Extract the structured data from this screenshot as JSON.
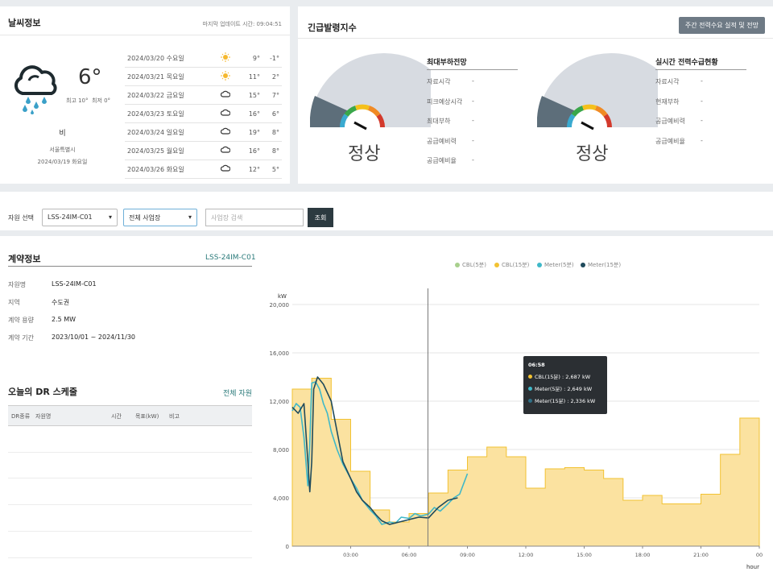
{
  "weather": {
    "title": "날씨정보",
    "updated": "마지막 업데이트 시간: 09:04:51",
    "icon": "rain-cloud-icon",
    "temp": "6°",
    "high": "최고 10°",
    "low": "최저 0°",
    "condition": "비",
    "location": "서울특별시",
    "date": "2024/03/19 화요일",
    "forecast": [
      {
        "date": "2024/03/20 수요일",
        "icon": "sun-icon",
        "high": "9°",
        "low": "-1°"
      },
      {
        "date": "2024/03/21 목요일",
        "icon": "sun-icon",
        "high": "11°",
        "low": "2°"
      },
      {
        "date": "2024/03/22 금요일",
        "icon": "cloud-icon",
        "high": "15°",
        "low": "7°"
      },
      {
        "date": "2024/03/23 토요일",
        "icon": "cloud-icon",
        "high": "16°",
        "low": "6°"
      },
      {
        "date": "2024/03/24 일요일",
        "icon": "cloud-icon",
        "high": "19°",
        "low": "8°"
      },
      {
        "date": "2024/03/25 월요일",
        "icon": "cloud-icon",
        "high": "16°",
        "low": "8°"
      },
      {
        "date": "2024/03/26 화요일",
        "icon": "cloud-icon",
        "high": "12°",
        "low": "5°"
      }
    ]
  },
  "emergency": {
    "title": "긴급발령지수",
    "button": "주간 전력수요 실적 및 전망",
    "gauges": [
      {
        "status": "정상",
        "info_title": "최대부하전망",
        "rows": [
          {
            "k": "자료시각",
            "v": "-"
          },
          {
            "k": "피크예상시각",
            "v": "-"
          },
          {
            "k": "최대부하",
            "v": "-"
          },
          {
            "k": "공급예비력",
            "v": "-"
          },
          {
            "k": "공급예비율",
            "v": "-"
          }
        ]
      },
      {
        "status": "정상",
        "info_title": "실시간 전력수급현황",
        "rows": [
          {
            "k": "자료시각",
            "v": "-"
          },
          {
            "k": "현재부하",
            "v": "-"
          },
          {
            "k": "공급예비력",
            "v": "-"
          },
          {
            "k": "공급예비율",
            "v": "-"
          }
        ]
      }
    ]
  },
  "filters": {
    "label": "자원 선택",
    "resource": "LSS-24IM-C01",
    "business": "전체 사업장",
    "search_placeholder": "사업장 검색",
    "search_button": "조회"
  },
  "contract": {
    "title": "계약정보",
    "code": "LSS-24IM-C01",
    "rows": [
      {
        "k": "자원명",
        "v": "LSS-24IM-C01"
      },
      {
        "k": "지역",
        "v": "수도권"
      },
      {
        "k": "계약 용량",
        "v": "2.5 MW"
      },
      {
        "k": "계약 기간",
        "v": "2023/10/01 ~ 2024/11/30"
      }
    ]
  },
  "dr": {
    "title": "오늘의 DR 스케줄",
    "all_link": "전체 자원",
    "columns": [
      "DR종류",
      "자원명",
      "시간",
      "목표(kW)",
      "비고"
    ]
  },
  "chart_data": {
    "type": "line",
    "ylabel": "kW",
    "xlabel": "hour",
    "ylim": [
      0,
      20000
    ],
    "yticks": [
      0,
      4000,
      8000,
      12000,
      16000,
      20000
    ],
    "ytick_labels": [
      "0",
      "4,000",
      "8,000",
      "12,000",
      "16,000",
      "20,000"
    ],
    "xlim": [
      0,
      24
    ],
    "xticks": [
      3,
      6,
      9,
      12,
      15,
      18,
      21,
      24
    ],
    "xtick_labels": [
      "03:00",
      "06:00",
      "09:00",
      "12:00",
      "15:00",
      "18:00",
      "21:00",
      "00"
    ],
    "legend": [
      {
        "name": "CBL(5분)",
        "color": "#a8d08d"
      },
      {
        "name": "CBL(15분)",
        "color": "#f2c232"
      },
      {
        "name": "Meter(5분)",
        "color": "#3fb8c8"
      },
      {
        "name": "Meter(15분)",
        "color": "#1f4a5c"
      }
    ],
    "cbl15": {
      "x": [
        0,
        1,
        2,
        3,
        4,
        5,
        6,
        7,
        8,
        9,
        10,
        11,
        12,
        13,
        14,
        15,
        16,
        17,
        18,
        19,
        20,
        21,
        22,
        23
      ],
      "values": [
        13000,
        13900,
        10500,
        6200,
        3000,
        2000,
        2700,
        4400,
        6300,
        7400,
        8200,
        7400,
        4800,
        6400,
        6500,
        6300,
        5600,
        3800,
        4200,
        3500,
        3500,
        4300,
        7600,
        10600
      ]
    },
    "meter5": {
      "x": [
        0,
        0.2,
        0.4,
        0.6,
        0.8,
        0.9,
        1.0,
        1.2,
        1.4,
        1.6,
        1.8,
        2.0,
        2.3,
        2.6,
        3.0,
        3.3,
        3.6,
        4.0,
        4.3,
        4.6,
        5.0,
        5.3,
        5.6,
        6.0,
        6.3,
        6.6,
        7.0,
        7.3,
        7.6,
        8.0,
        8.3,
        8.6,
        9.0
      ],
      "values": [
        11200,
        11800,
        11500,
        9000,
        5000,
        8500,
        13500,
        13600,
        13000,
        11800,
        11000,
        9500,
        8000,
        6800,
        5600,
        4800,
        3800,
        3000,
        2500,
        1800,
        2000,
        1900,
        2400,
        2300,
        2700,
        2500,
        2650,
        3200,
        2900,
        3500,
        4000,
        4300,
        6000
      ]
    },
    "meter15": {
      "x": [
        0,
        0.3,
        0.6,
        0.8,
        0.9,
        1.0,
        1.1,
        1.3,
        1.6,
        2.0,
        2.3,
        2.6,
        3.0,
        3.3,
        3.6,
        4.0,
        4.3,
        4.6,
        5.0,
        5.5,
        6.0,
        6.5,
        7.0,
        7.5,
        8.0,
        8.5
      ],
      "values": [
        11500,
        11000,
        11800,
        7000,
        4500,
        7000,
        13000,
        14000,
        13400,
        12000,
        9500,
        7000,
        5600,
        4500,
        3800,
        3200,
        2600,
        2100,
        1800,
        2000,
        2200,
        2400,
        2336,
        3200,
        3800,
        4000
      ]
    },
    "cursor_x": 6.97,
    "tooltip": {
      "time": "06:58",
      "rows": [
        {
          "label": "CBL(15분) : 2,687 kW",
          "color": "#f2c232"
        },
        {
          "label": "Meter(5분) : 2,649 kW",
          "color": "#3fb8c8"
        },
        {
          "label": "Meter(15분) : 2,336 kW",
          "color": "#2f6f86"
        }
      ]
    }
  }
}
